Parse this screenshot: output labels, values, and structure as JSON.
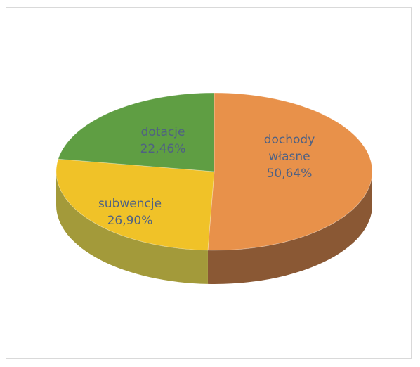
{
  "chart_data": {
    "type": "pie",
    "style": "3d",
    "categories": [
      "dochody własne",
      "subwencje",
      "dotacje"
    ],
    "values": [
      50.64,
      26.9,
      22.46
    ],
    "labels": [
      {
        "lines": [
          "dochody",
          "własne",
          "50,64%"
        ]
      },
      {
        "lines": [
          "subwencje",
          "26,90%"
        ]
      },
      {
        "lines": [
          "dotacje",
          "22,46%"
        ]
      }
    ],
    "colors": [
      "#e8914a",
      "#f0c228",
      "#5f9e43"
    ],
    "side_colors": [
      "#8a5834",
      "#a39a3a",
      "#4f7a34"
    ],
    "legend": false
  }
}
